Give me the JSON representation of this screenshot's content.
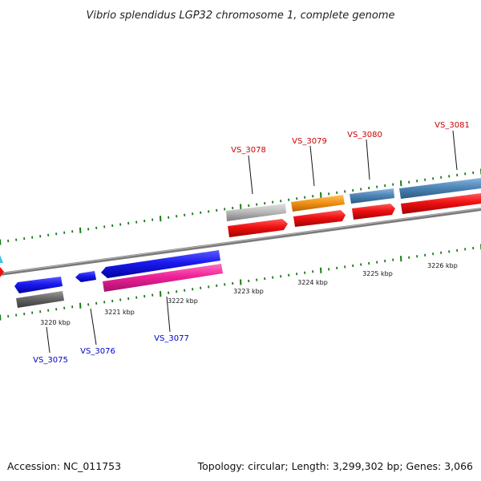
{
  "title": "Vibrio splendidus LGP32 chromosome 1, complete genome",
  "footer": {
    "accession": "Accession: NC_011753",
    "summary": "Topology: circular; Length: 3,299,302 bp; Genes: 3,066"
  },
  "colors": {
    "backbone": "#7a7a7a",
    "tick": "#1a7a1a",
    "label_top": "#cc0000",
    "label_bottom": "#0000cc",
    "red": "#ee1111",
    "blue": "#1a1aee",
    "pink": "#ee2299",
    "grey": "#666666",
    "lightgrey": "#bbbbbb",
    "orange": "#f29418",
    "steelblue": "#4f86b8"
  },
  "kbp_labels": [
    "3220 kbp",
    "3221 kbp",
    "3222 kbp",
    "3223 kbp",
    "3224 kbp",
    "3225 kbp",
    "3226 kbp"
  ],
  "gene_labels_top": [
    "VS_3078",
    "VS_3079",
    "VS_3080",
    "VS_3081"
  ],
  "gene_labels_bottom": [
    "VS_3075",
    "VS_3076",
    "VS_3077"
  ]
}
